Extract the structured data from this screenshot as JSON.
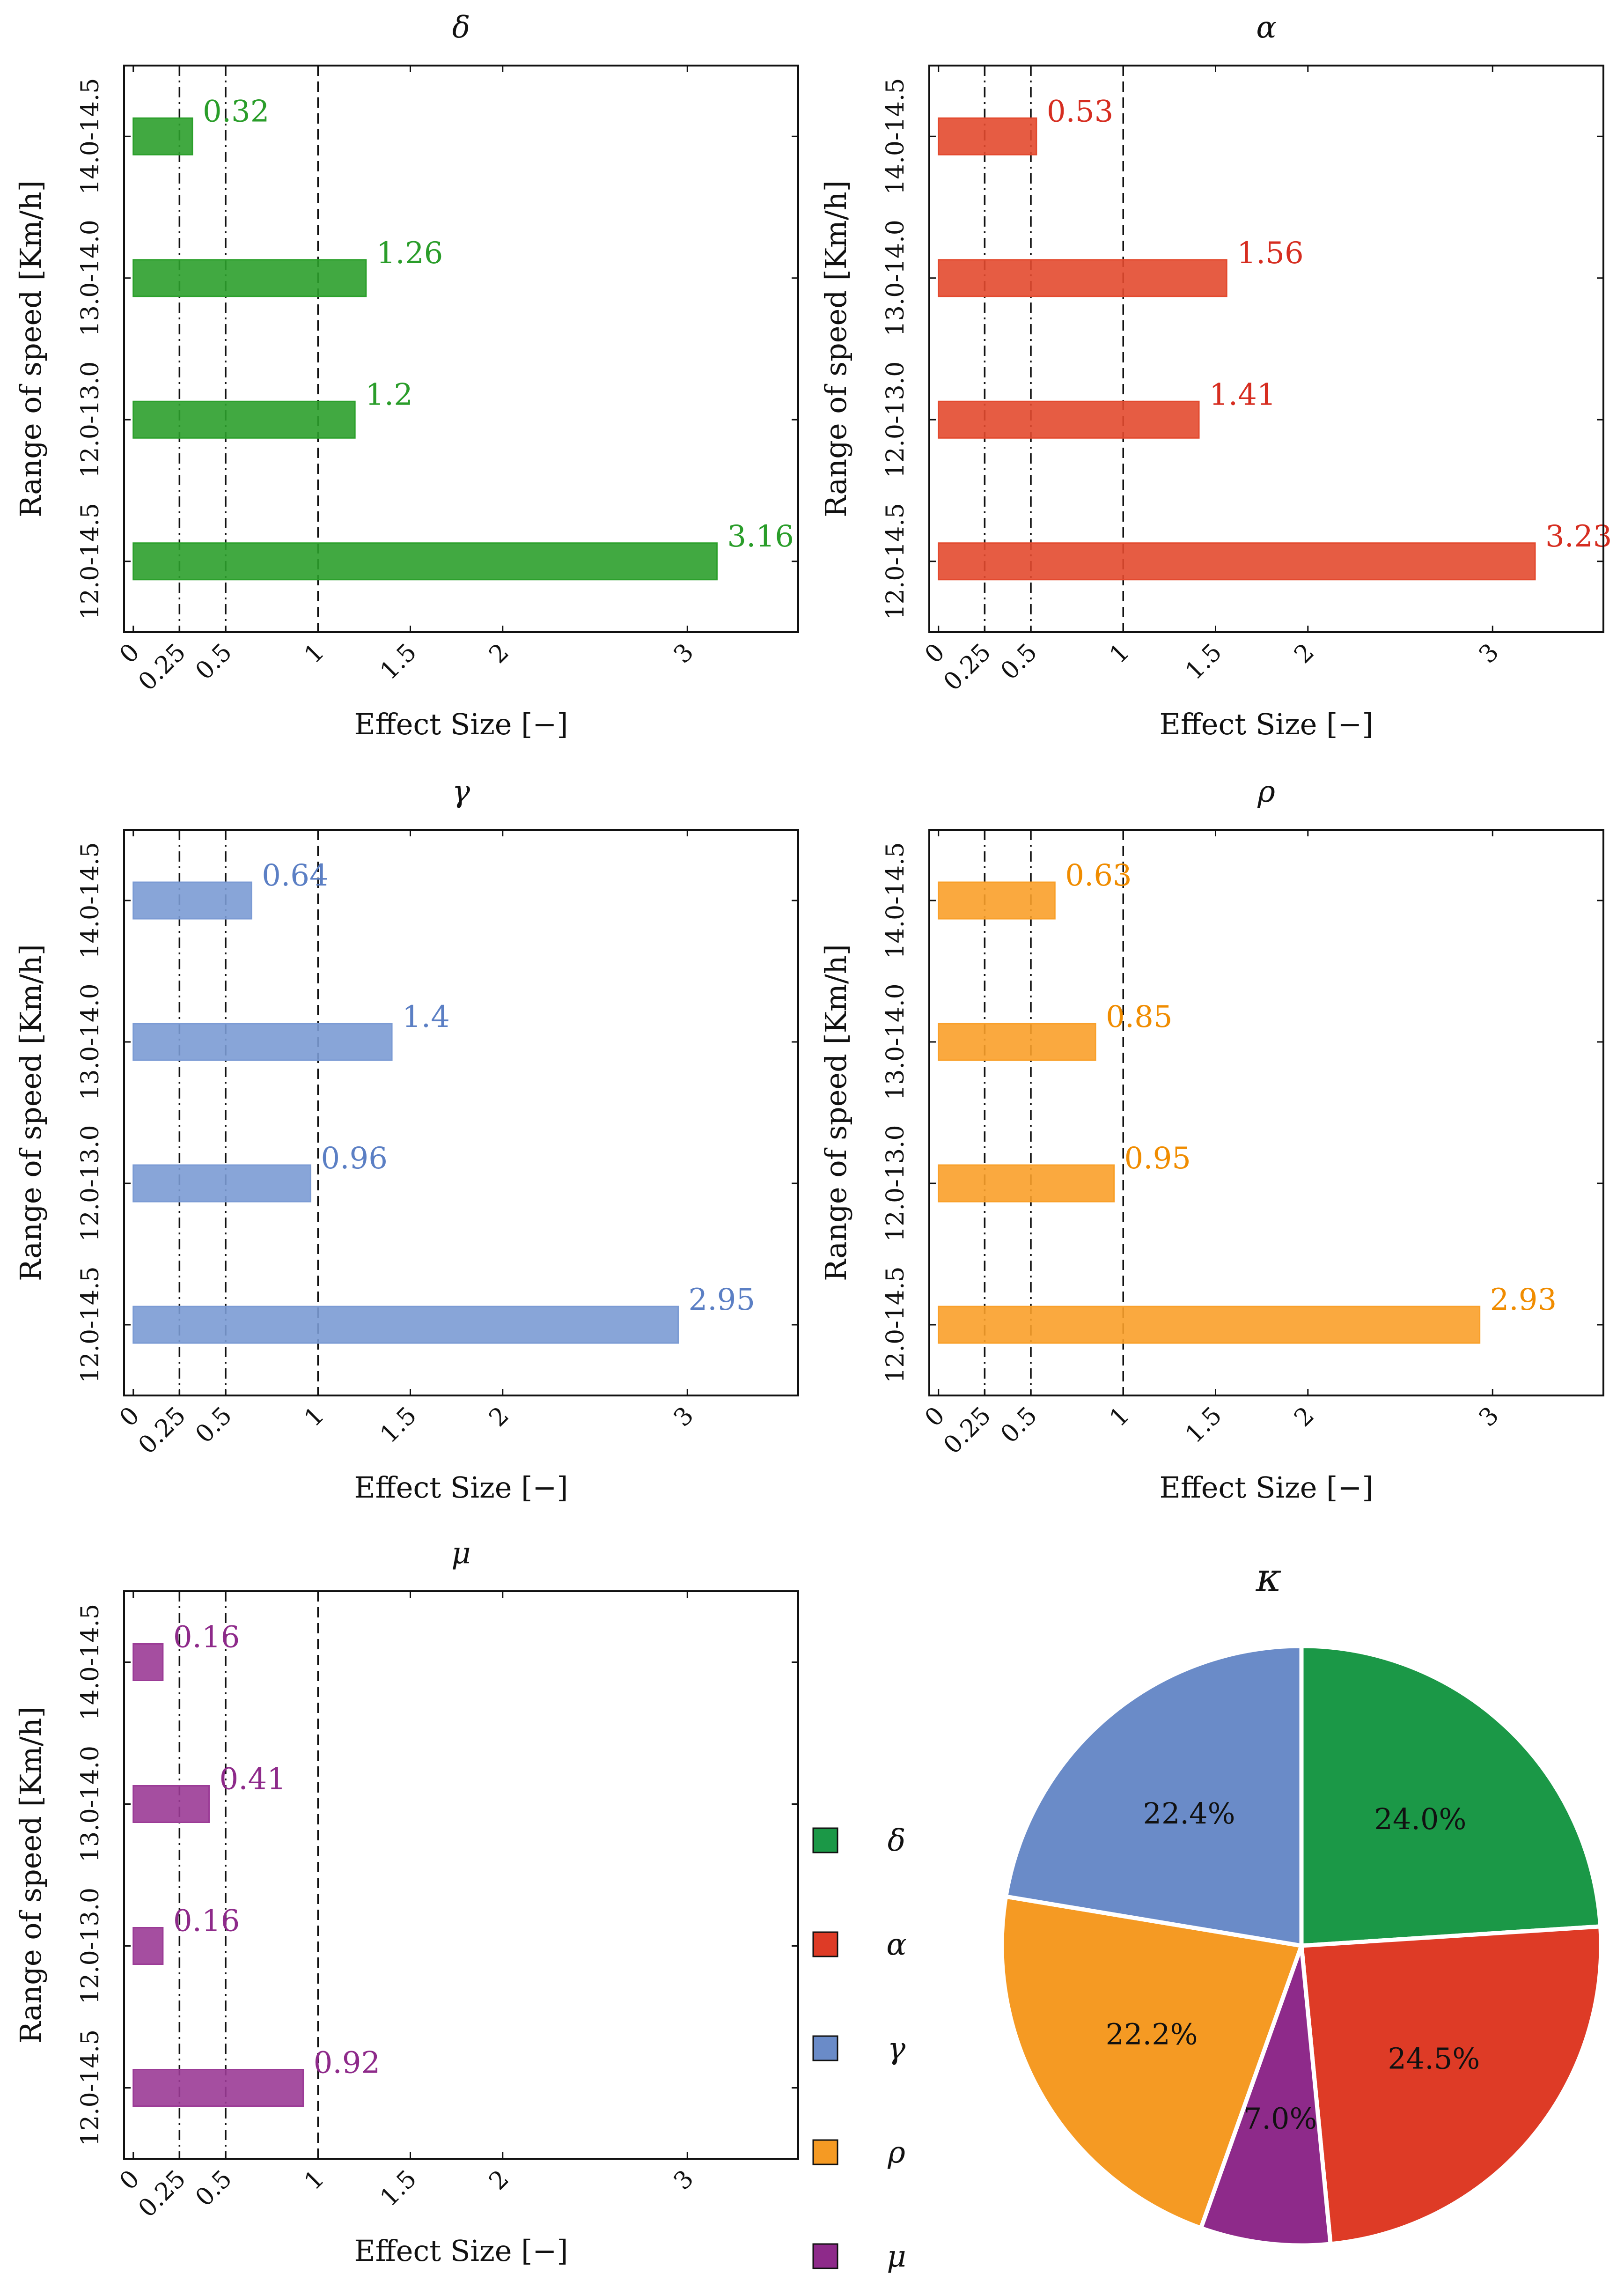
{
  "chart_data": [
    {
      "type": "bar",
      "orientation": "horizontal",
      "title": "δ",
      "color": "#2ca02c",
      "label_color": "#2a9d2a",
      "xlabel": "Effect Size [−]",
      "ylabel": "Range of speed [Km/h]",
      "categories": [
        "12.0-14.5",
        "12.0-13.0",
        "13.0-14.0",
        "14.0-14.5"
      ],
      "values": [
        3.16,
        1.2,
        1.26,
        0.32
      ],
      "value_labels": [
        "3.16",
        "1.2",
        "1.26",
        "0.32"
      ],
      "xlim": [
        -0.05,
        3.6
      ],
      "xticks": [
        0,
        0.25,
        0.5,
        1,
        1.5,
        2,
        3
      ],
      "xtick_labels": [
        "0",
        "0.25",
        "0.5",
        "1",
        "1.5",
        "2",
        "3"
      ],
      "reference_lines": [
        {
          "x": 0.25,
          "style": "dash-dot"
        },
        {
          "x": 0.5,
          "style": "dash-dot"
        },
        {
          "x": 1,
          "style": "dashed"
        }
      ]
    },
    {
      "type": "bar",
      "orientation": "horizontal",
      "title": "α",
      "color": "#e34a2f",
      "label_color": "#d62d20",
      "xlabel": "Effect Size [−]",
      "ylabel": "Range of speed [Km/h]",
      "categories": [
        "12.0-14.5",
        "12.0-13.0",
        "13.0-14.0",
        "14.0-14.5"
      ],
      "values": [
        3.23,
        1.41,
        1.56,
        0.53
      ],
      "value_labels": [
        "3.23",
        "1.41",
        "1.56",
        "0.53"
      ],
      "xlim": [
        -0.05,
        3.6
      ],
      "xticks": [
        0,
        0.25,
        0.5,
        1,
        1.5,
        2,
        3
      ],
      "xtick_labels": [
        "0",
        "0.25",
        "0.5",
        "1",
        "1.5",
        "2",
        "3"
      ],
      "reference_lines": [
        {
          "x": 0.25,
          "style": "dash-dot"
        },
        {
          "x": 0.5,
          "style": "dash-dot"
        },
        {
          "x": 1,
          "style": "dashed"
        }
      ]
    },
    {
      "type": "bar",
      "orientation": "horizontal",
      "title": "γ",
      "color": "#7b9bd4",
      "label_color": "#5b7fc4",
      "xlabel": "Effect Size [−]",
      "ylabel": "Range of speed [Km/h]",
      "categories": [
        "12.0-14.5",
        "12.0-13.0",
        "13.0-14.0",
        "14.0-14.5"
      ],
      "values": [
        2.95,
        0.96,
        1.4,
        0.64
      ],
      "value_labels": [
        "2.95",
        "0.96",
        "1.4",
        "0.64"
      ],
      "xlim": [
        -0.05,
        3.6
      ],
      "xticks": [
        0,
        0.25,
        0.5,
        1,
        1.5,
        2,
        3
      ],
      "xtick_labels": [
        "0",
        "0.25",
        "0.5",
        "1",
        "1.5",
        "2",
        "3"
      ],
      "reference_lines": [
        {
          "x": 0.25,
          "style": "dash-dot"
        },
        {
          "x": 0.5,
          "style": "dash-dot"
        },
        {
          "x": 1,
          "style": "dashed"
        }
      ]
    },
    {
      "type": "bar",
      "orientation": "horizontal",
      "title": "ρ",
      "color": "#f9a02a",
      "label_color": "#f08c00",
      "xlabel": "Effect Size [−]",
      "ylabel": "Range of speed [Km/h]",
      "categories": [
        "12.0-14.5",
        "12.0-13.0",
        "13.0-14.0",
        "14.0-14.5"
      ],
      "values": [
        2.93,
        0.95,
        0.85,
        0.63
      ],
      "value_labels": [
        "2.93",
        "0.95",
        "0.85",
        "0.63"
      ],
      "xlim": [
        -0.05,
        3.6
      ],
      "xticks": [
        0,
        0.25,
        0.5,
        1,
        1.5,
        2,
        3
      ],
      "xtick_labels": [
        "0",
        "0.25",
        "0.5",
        "1",
        "1.5",
        "2",
        "3"
      ],
      "reference_lines": [
        {
          "x": 0.25,
          "style": "dash-dot"
        },
        {
          "x": 0.5,
          "style": "dash-dot"
        },
        {
          "x": 1,
          "style": "dashed"
        }
      ]
    },
    {
      "type": "bar",
      "orientation": "horizontal",
      "title": "μ",
      "color": "#9b3b96",
      "label_color": "#8e2a8a",
      "xlabel": "Effect Size [−]",
      "ylabel": "Range of speed [Km/h]",
      "categories": [
        "12.0-14.5",
        "12.0-13.0",
        "13.0-14.0",
        "14.0-14.5"
      ],
      "values": [
        0.92,
        0.16,
        0.41,
        0.16
      ],
      "value_labels": [
        "0.92",
        "0.16",
        "0.41",
        "0.16"
      ],
      "xlim": [
        -0.05,
        3.6
      ],
      "xticks": [
        0,
        0.25,
        0.5,
        1,
        1.5,
        2,
        3
      ],
      "xtick_labels": [
        "0",
        "0.25",
        "0.5",
        "1",
        "1.5",
        "2",
        "3"
      ],
      "reference_lines": [
        {
          "x": 0.25,
          "style": "dash-dot"
        },
        {
          "x": 0.5,
          "style": "dash-dot"
        },
        {
          "x": 1,
          "style": "dashed"
        }
      ]
    },
    {
      "type": "pie",
      "title": "κ",
      "slices": [
        {
          "name": "δ",
          "value": 24.0,
          "label": "24.0%",
          "color": "#1b9847"
        },
        {
          "name": "α",
          "value": 24.5,
          "label": "24.5%",
          "color": "#de3b26"
        },
        {
          "name": "μ",
          "value": 7.0,
          "label": "7.0%",
          "color": "#8e2a8a"
        },
        {
          "name": "ρ",
          "value": 22.2,
          "label": "22.2%",
          "color": "#f59a23"
        },
        {
          "name": "γ",
          "value": 22.4,
          "label": "22.4%",
          "color": "#6a8bc8"
        }
      ],
      "legend": {
        "position": "left",
        "entries": [
          {
            "name": "δ",
            "color": "#1b9847"
          },
          {
            "name": "α",
            "color": "#de3b26"
          },
          {
            "name": "γ",
            "color": "#6a8bc8"
          },
          {
            "name": "ρ",
            "color": "#f59a23"
          },
          {
            "name": "μ",
            "color": "#8e2a8a"
          }
        ]
      }
    }
  ]
}
